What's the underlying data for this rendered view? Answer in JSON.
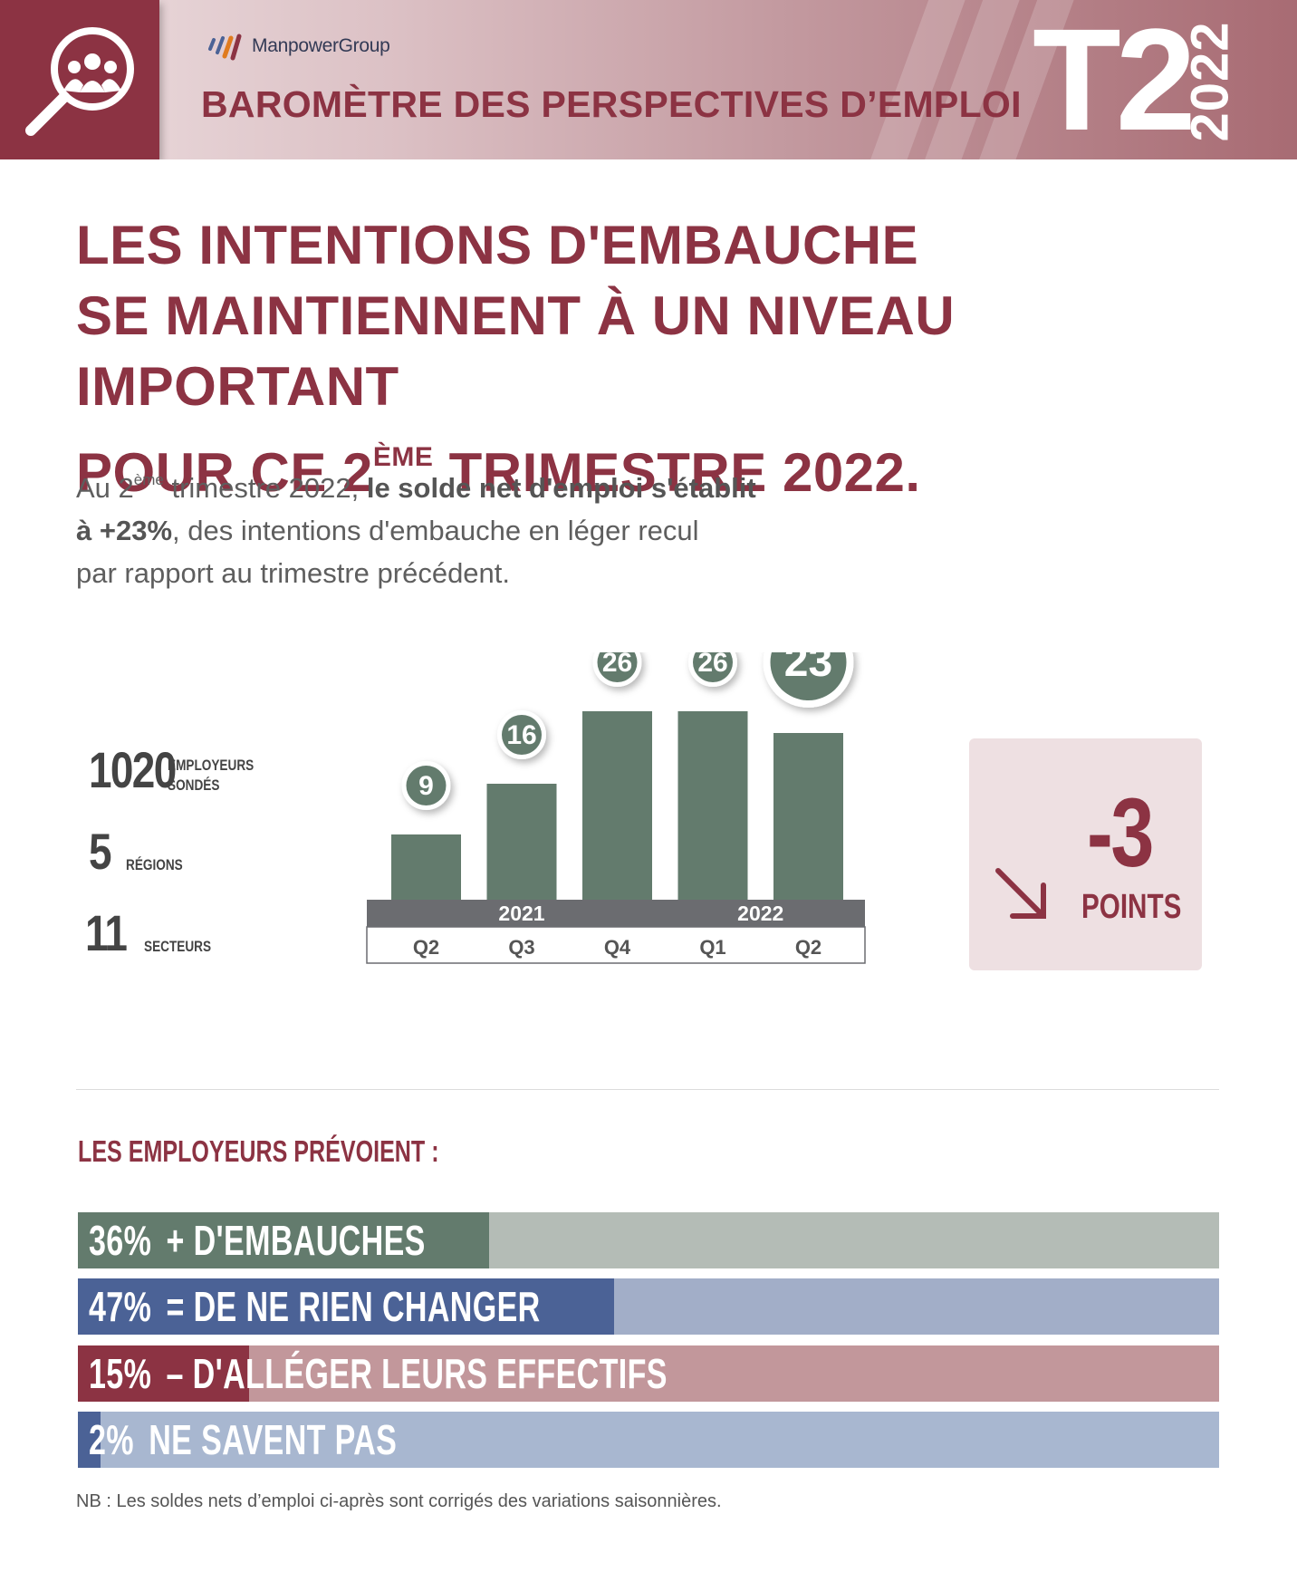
{
  "header": {
    "logo_text": "ManpowerGroup",
    "title": "BAROMÈTRE DES PERSPECTIVES D’EMPLOI",
    "quarter": "T2",
    "year": "2022"
  },
  "headline": {
    "line1": "LES INTENTIONS D'EMBAUCHE",
    "line2": "SE MAINTIENNENT À UN NIVEAU IMPORTANT",
    "line3_pre": "POUR CE 2",
    "line3_sup": "ÈME",
    "line3_post": " TRIMESTRE 2022."
  },
  "intro": {
    "t1": "Au 2",
    "t1_sup": "ème",
    "t2": " trimestre 2022, ",
    "bold1": "le solde net d'emploi s'établit",
    "bold2": "à +23%",
    "t3": ", des intentions d'embauche en léger recul",
    "t4": "par rapport au trimestre précédent."
  },
  "stats": [
    {
      "value": "1020",
      "label1": "EMPLOYEURS",
      "label2": "SONDÉS"
    },
    {
      "value": "5",
      "label1": "RÉGIONS",
      "label2": ""
    },
    {
      "value": "11",
      "label1": "SECTEURS",
      "label2": ""
    }
  ],
  "chart_data": {
    "type": "bar",
    "categories": [
      "Q2",
      "Q3",
      "Q4",
      "Q1",
      "Q2"
    ],
    "years": [
      {
        "label": "2021",
        "span": [
          0,
          2
        ]
      },
      {
        "label": "2022",
        "span": [
          3,
          4
        ]
      }
    ],
    "values": [
      9,
      16,
      26,
      26,
      23
    ],
    "highlight_index": 4,
    "ylim": [
      0,
      30
    ],
    "colors": {
      "bar": "#637b6d",
      "axis_band": "#6b6c70"
    }
  },
  "delta": {
    "value": "-3",
    "unit": "POINTS"
  },
  "breakdown": {
    "title": "LES EMPLOYEURS PRÉVOIENT :",
    "items": [
      {
        "pct": "36%",
        "label": "+ D'EMBAUCHES",
        "value": 36,
        "fill": "#637b6d",
        "track": "#b4bcb6"
      },
      {
        "pct": "47%",
        "label": "= DE NE RIEN CHANGER",
        "value": 47,
        "fill": "#4b6296",
        "track": "#a2aec8"
      },
      {
        "pct": "15%",
        "label": "– D'ALLÉGER LEURS EFFECTIFS",
        "value": 15,
        "fill": "#8c3343",
        "track": "#c2979b"
      },
      {
        "pct": "2%",
        "label": "NE SAVENT PAS",
        "value": 2,
        "fill": "#4b6296",
        "track": "#a8b7d0"
      }
    ]
  },
  "footnote": "NB : Les soldes nets d’emploi ci-après sont corrigés des variations saisonnières."
}
